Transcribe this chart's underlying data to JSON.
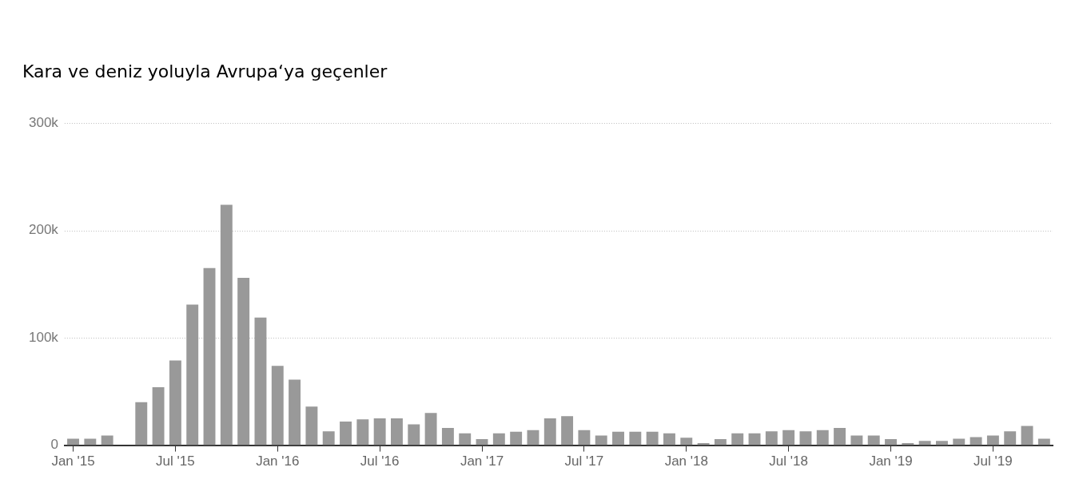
{
  "chart_data": {
    "type": "bar",
    "title": "Kara ve deniz yoluyla Avrupa‘ya geçenler",
    "categories": [
      "Jan '15",
      null,
      null,
      null,
      null,
      null,
      "Jul '15",
      null,
      null,
      null,
      null,
      null,
      "Jan '16",
      null,
      null,
      null,
      null,
      null,
      "Jul '16",
      null,
      null,
      null,
      null,
      null,
      "Jan '17",
      null,
      null,
      null,
      null,
      null,
      "Jul '17",
      null,
      null,
      null,
      null,
      null,
      "Jan '18",
      null,
      null,
      null,
      null,
      null,
      "Jul '18",
      null,
      null,
      null,
      null,
      null,
      "Jan '19",
      null,
      null,
      null,
      null,
      null,
      "Jul '19",
      null,
      null,
      null
    ],
    "values": [
      6000,
      6000,
      9000,
      null,
      40000,
      54000,
      79000,
      131000,
      165000,
      224000,
      156000,
      119000,
      74000,
      61000,
      36000,
      13000,
      22000,
      24000,
      25000,
      25000,
      19500,
      30000,
      16000,
      11000,
      5600,
      11000,
      12500,
      14000,
      25000,
      27000,
      14000,
      9000,
      12500,
      12500,
      12500,
      11000,
      7000,
      2000,
      5600,
      11000,
      11000,
      13000,
      14000,
      13000,
      14000,
      16000,
      9000,
      9000,
      5600,
      2000,
      4000,
      4000,
      6000,
      7500,
      9000,
      13000,
      18000,
      6000
    ],
    "color": "#999999",
    "ylim": [
      0,
      300000
    ],
    "yticks": [
      {
        "value": 0,
        "label": "0"
      },
      {
        "value": 100000,
        "label": "100k"
      },
      {
        "value": 200000,
        "label": "200k"
      },
      {
        "value": 300000,
        "label": "300k"
      }
    ],
    "grid": "y"
  }
}
